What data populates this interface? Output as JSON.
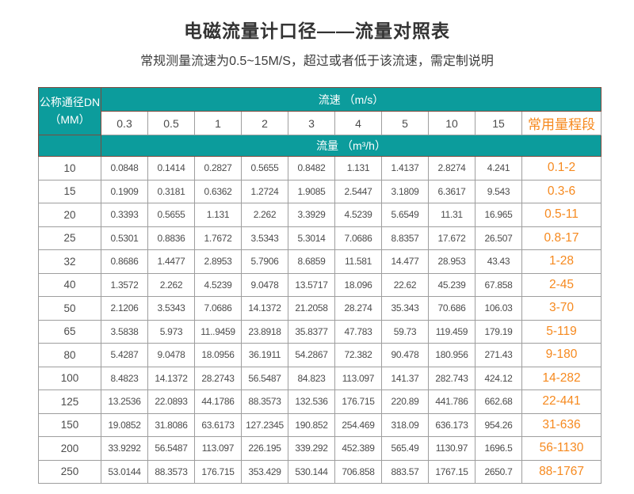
{
  "title": "电磁流量计口径——流量对照表",
  "subtitle": "常规测量流速为0.5~15M/S，超过或者低于该流速，需定制说明",
  "colors": {
    "teal": "#0C9C9C",
    "orange": "#F6891E",
    "data_text": "#4c4c4c"
  },
  "table": {
    "dn_header_line1": "公称通径DN",
    "dn_header_line2": "（MM）",
    "velocity_header": "流速 （m/s）",
    "flow_header": "流量 （m³/h）",
    "range_header": "常用量程段"
  },
  "chart_data": {
    "type": "table",
    "title": "电磁流量计口径——流量对照表",
    "subtitle": "常规测量流速为0.5~15M/S，超过或者低于该流速，需定制说明",
    "row_axis_label": "公称通径DN（MM）",
    "column_axis_label": "流速 （m/s）",
    "value_label": "流量 （m³/h）",
    "range_label": "常用量程段",
    "velocity_ms": [
      "0.3",
      "0.5",
      "1",
      "2",
      "3",
      "4",
      "5",
      "10",
      "15"
    ],
    "rows": [
      {
        "dn": "10",
        "flows": [
          "0.0848",
          "0.1414",
          "0.2827",
          "0.5655",
          "0.8482",
          "1.131",
          "1.4137",
          "2.8274",
          "4.241"
        ],
        "range": "0.1-2"
      },
      {
        "dn": "15",
        "flows": [
          "0.1909",
          "0.3181",
          "0.6362",
          "1.2724",
          "1.9085",
          "2.5447",
          "3.1809",
          "6.3617",
          "9.543"
        ],
        "range": "0.3-6"
      },
      {
        "dn": "20",
        "flows": [
          "0.3393",
          "0.5655",
          "1.131",
          "2.262",
          "3.3929",
          "4.5239",
          "5.6549",
          "11.31",
          "16.965"
        ],
        "range": "0.5-11"
      },
      {
        "dn": "25",
        "flows": [
          "0.5301",
          "0.8836",
          "1.7672",
          "3.5343",
          "5.3014",
          "7.0686",
          "8.8357",
          "17.672",
          "26.507"
        ],
        "range": "0.8-17"
      },
      {
        "dn": "32",
        "flows": [
          "0.8686",
          "1.4477",
          "2.8953",
          "5.7906",
          "8.6859",
          "11.581",
          "14.477",
          "28.953",
          "43.43"
        ],
        "range": "1-28"
      },
      {
        "dn": "40",
        "flows": [
          "1.3572",
          "2.262",
          "4.5239",
          "9.0478",
          "13.5717",
          "18.096",
          "22.62",
          "45.239",
          "67.858"
        ],
        "range": "2-45"
      },
      {
        "dn": "50",
        "flows": [
          "2.1206",
          "3.5343",
          "7.0686",
          "14.1372",
          "21.2058",
          "28.274",
          "35.343",
          "70.686",
          "106.03"
        ],
        "range": "3-70"
      },
      {
        "dn": "65",
        "flows": [
          "3.5838",
          "5.973",
          "11..9459",
          "23.8918",
          "35.8377",
          "47.783",
          "59.73",
          "119.459",
          "179.19"
        ],
        "range": "5-119"
      },
      {
        "dn": "80",
        "flows": [
          "5.4287",
          "9.0478",
          "18.0956",
          "36.1911",
          "54.2867",
          "72.382",
          "90.478",
          "180.956",
          "271.43"
        ],
        "range": "9-180"
      },
      {
        "dn": "100",
        "flows": [
          "8.4823",
          "14.1372",
          "28.2743",
          "56.5487",
          "84.823",
          "113.097",
          "141.37",
          "282.743",
          "424.12"
        ],
        "range": "14-282"
      },
      {
        "dn": "125",
        "flows": [
          "13.2536",
          "22.0893",
          "44.1786",
          "88.3573",
          "132.536",
          "176.715",
          "220.89",
          "441.786",
          "662.68"
        ],
        "range": "22-441"
      },
      {
        "dn": "150",
        "flows": [
          "19.0852",
          "31.8086",
          "63.6173",
          "127.2345",
          "190.852",
          "254.469",
          "318.09",
          "636.173",
          "954.26"
        ],
        "range": "31-636"
      },
      {
        "dn": "200",
        "flows": [
          "33.9292",
          "56.5487",
          "113.097",
          "226.195",
          "339.292",
          "452.389",
          "565.49",
          "1130.97",
          "1696.5"
        ],
        "range": "56-1130"
      },
      {
        "dn": "250",
        "flows": [
          "53.0144",
          "88.3573",
          "176.715",
          "353.429",
          "530.144",
          "706.858",
          "883.57",
          "1767.15",
          "2650.7"
        ],
        "range": "88-1767"
      }
    ]
  }
}
